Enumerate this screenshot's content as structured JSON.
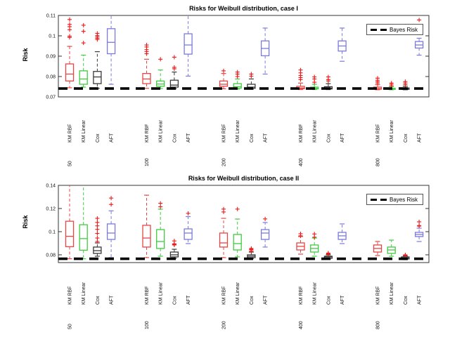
{
  "figure": {
    "background": "#ffffff"
  },
  "bayes_line_color": "#000000",
  "outlier_color": "#f01818",
  "method_colors": {
    "KM RBF": "#e84545",
    "KM Linear": "#3fcc3f",
    "Cox": "#3a3a3a",
    "AFT": "#7a7ae0"
  },
  "chart_data": [
    {
      "type": "boxplot",
      "title": "Risks for Weibull distribution, case I",
      "ylabel": "Risk",
      "legend_label": "Bayes Risk",
      "legend_position": "top-right",
      "ylim": [
        0.07,
        0.11
      ],
      "yticks": [
        0.07,
        0.08,
        0.09,
        0.1,
        0.11
      ],
      "ytick_labels": [
        "0.07",
        "0.08",
        "0.09",
        "0.1",
        "0.11"
      ],
      "bayes_risk": 0.0741,
      "groups": [
        "50",
        "100",
        "200",
        "400",
        "800"
      ],
      "methods": [
        "KM RBF",
        "KM Linear",
        "Cox",
        "AFT"
      ],
      "boxes": [
        {
          "g": "50",
          "m": "KM RBF",
          "wl": 0.0745,
          "q1": 0.0778,
          "md": 0.0812,
          "q3": 0.0862,
          "wh": 0.0948,
          "out": [
            0.0992,
            0.0998,
            0.103,
            0.1045,
            0.1056,
            0.108
          ]
        },
        {
          "g": "50",
          "m": "KM Linear",
          "wl": 0.0748,
          "q1": 0.0762,
          "md": 0.0788,
          "q3": 0.0828,
          "wh": 0.0905,
          "out": [
            0.0965,
            0.1022,
            0.1052
          ]
        },
        {
          "g": "50",
          "m": "Cox",
          "wl": 0.0742,
          "q1": 0.0765,
          "md": 0.0798,
          "q3": 0.0825,
          "wh": 0.0922,
          "out": [
            0.0982,
            0.0988,
            0.0995,
            0.1002,
            0.1012
          ]
        },
        {
          "g": "50",
          "m": "AFT",
          "wl": 0.0762,
          "q1": 0.0912,
          "md": 0.0968,
          "q3": 0.1035,
          "wh": 0.1098,
          "out": []
        },
        {
          "g": "100",
          "m": "KM RBF",
          "wl": 0.0742,
          "q1": 0.0765,
          "md": 0.0788,
          "q3": 0.0815,
          "wh": 0.0885,
          "out": [
            0.0912,
            0.0922,
            0.0932,
            0.0945,
            0.0955
          ]
        },
        {
          "g": "100",
          "m": "KM Linear",
          "wl": 0.0741,
          "q1": 0.0752,
          "md": 0.0763,
          "q3": 0.0778,
          "wh": 0.0832,
          "out": [
            0.0885
          ]
        },
        {
          "g": "100",
          "m": "Cox",
          "wl": 0.074,
          "q1": 0.0748,
          "md": 0.0758,
          "q3": 0.0782,
          "wh": 0.0822,
          "out": [
            0.0838,
            0.0845,
            0.0895
          ]
        },
        {
          "g": "100",
          "m": "AFT",
          "wl": 0.0802,
          "q1": 0.091,
          "md": 0.0955,
          "q3": 0.101,
          "wh": 0.1135,
          "out": []
        },
        {
          "g": "200",
          "m": "KM RBF",
          "wl": 0.074,
          "q1": 0.0752,
          "md": 0.0762,
          "q3": 0.0778,
          "wh": 0.0815,
          "out": [
            0.0828
          ]
        },
        {
          "g": "200",
          "m": "KM Linear",
          "wl": 0.0738,
          "q1": 0.0743,
          "md": 0.075,
          "q3": 0.0765,
          "wh": 0.0788,
          "out": [
            0.08,
            0.0812,
            0.0822
          ]
        },
        {
          "g": "200",
          "m": "Cox",
          "wl": 0.0738,
          "q1": 0.0742,
          "md": 0.0748,
          "q3": 0.0762,
          "wh": 0.0788,
          "out": [
            0.0802,
            0.0812
          ]
        },
        {
          "g": "200",
          "m": "AFT",
          "wl": 0.0812,
          "q1": 0.0902,
          "md": 0.0938,
          "q3": 0.0975,
          "wh": 0.1038,
          "out": []
        },
        {
          "g": "400",
          "m": "KM RBF",
          "wl": 0.0736,
          "q1": 0.074,
          "md": 0.0744,
          "q3": 0.0752,
          "wh": 0.0768,
          "out": [
            0.0785,
            0.0795,
            0.0805,
            0.0818,
            0.0832
          ]
        },
        {
          "g": "400",
          "m": "KM Linear",
          "wl": 0.0736,
          "q1": 0.0739,
          "md": 0.0742,
          "q3": 0.0748,
          "wh": 0.0762,
          "out": [
            0.0772,
            0.0788,
            0.0798
          ]
        },
        {
          "g": "400",
          "m": "Cox",
          "wl": 0.0736,
          "q1": 0.0739,
          "md": 0.0743,
          "q3": 0.075,
          "wh": 0.0765,
          "out": [
            0.0778,
            0.0785,
            0.0798
          ]
        },
        {
          "g": "400",
          "m": "AFT",
          "wl": 0.0875,
          "q1": 0.0925,
          "md": 0.095,
          "q3": 0.0975,
          "wh": 0.1038,
          "out": []
        },
        {
          "g": "800",
          "m": "KM RBF",
          "wl": 0.0735,
          "q1": 0.0738,
          "md": 0.0741,
          "q3": 0.0748,
          "wh": 0.076,
          "out": [
            0.0768,
            0.0775,
            0.0782,
            0.0792
          ]
        },
        {
          "g": "800",
          "m": "KM Linear",
          "wl": 0.0735,
          "q1": 0.0737,
          "md": 0.0739,
          "q3": 0.0742,
          "wh": 0.075,
          "out": [
            0.0755,
            0.0762,
            0.0768
          ]
        },
        {
          "g": "800",
          "m": "Cox",
          "wl": 0.0735,
          "q1": 0.0737,
          "md": 0.074,
          "q3": 0.0744,
          "wh": 0.0752,
          "out": [
            0.076,
            0.0768,
            0.0775
          ]
        },
        {
          "g": "800",
          "m": "AFT",
          "wl": 0.0905,
          "q1": 0.094,
          "md": 0.0955,
          "q3": 0.0972,
          "wh": 0.0988,
          "out": [
            0.1078
          ]
        }
      ]
    },
    {
      "type": "boxplot",
      "title": "Risks for Weibull distribution, case II",
      "ylabel": "Risk",
      "legend_label": "Bayes Risk",
      "legend_position": "top-right",
      "ylim": [
        0.0733,
        0.14
      ],
      "yticks": [
        0.08,
        0.1,
        0.12,
        0.14
      ],
      "ytick_labels": [
        "0.08",
        "0.1",
        "0.12",
        "0.14"
      ],
      "bayes_risk": 0.0766,
      "groups": [
        "50",
        "100",
        "200",
        "400",
        "800"
      ],
      "methods": [
        "KM RBF",
        "KM Linear",
        "Cox",
        "AFT"
      ],
      "boxes": [
        {
          "g": "50",
          "m": "KM RBF",
          "wl": 0.0766,
          "q1": 0.087,
          "md": 0.096,
          "q3": 0.109,
          "wh": 0.142,
          "out": []
        },
        {
          "g": "50",
          "m": "KM Linear",
          "wl": 0.0766,
          "q1": 0.084,
          "md": 0.094,
          "q3": 0.106,
          "wh": 0.142,
          "out": []
        },
        {
          "g": "50",
          "m": "Cox",
          "wl": 0.0788,
          "q1": 0.0812,
          "md": 0.0836,
          "q3": 0.0867,
          "wh": 0.0903,
          "out": [
            0.0915,
            0.0945,
            0.0985,
            0.102,
            0.105,
            0.108,
            0.1115
          ]
        },
        {
          "g": "50",
          "m": "AFT",
          "wl": 0.0776,
          "q1": 0.0933,
          "md": 0.0988,
          "q3": 0.1067,
          "wh": 0.118,
          "out": [
            0.1235,
            0.129
          ]
        },
        {
          "g": "100",
          "m": "KM RBF",
          "wl": 0.0776,
          "q1": 0.0867,
          "md": 0.0945,
          "q3": 0.1055,
          "wh": 0.1315,
          "out": []
        },
        {
          "g": "100",
          "m": "KM Linear",
          "wl": 0.0788,
          "q1": 0.0855,
          "md": 0.0915,
          "q3": 0.1018,
          "wh": 0.1194,
          "out": [
            0.1215,
            0.1245
          ]
        },
        {
          "g": "100",
          "m": "Cox",
          "wl": 0.077,
          "q1": 0.0782,
          "md": 0.08,
          "q3": 0.0824,
          "wh": 0.0848,
          "out": [
            0.0885,
            0.089,
            0.0895,
            0.092
          ]
        },
        {
          "g": "100",
          "m": "AFT",
          "wl": 0.0897,
          "q1": 0.0933,
          "md": 0.0988,
          "q3": 0.1024,
          "wh": 0.113,
          "out": [
            0.1158
          ]
        },
        {
          "g": "200",
          "m": "KM RBF",
          "wl": 0.0776,
          "q1": 0.0867,
          "md": 0.0903,
          "q3": 0.0988,
          "wh": 0.1115,
          "out": [
            0.117,
            0.1195
          ]
        },
        {
          "g": "200",
          "m": "KM Linear",
          "wl": 0.0782,
          "q1": 0.0842,
          "md": 0.0897,
          "q3": 0.0976,
          "wh": 0.1109,
          "out": [
            0.1195
          ]
        },
        {
          "g": "200",
          "m": "Cox",
          "wl": 0.0768,
          "q1": 0.0776,
          "md": 0.0788,
          "q3": 0.08,
          "wh": 0.0824,
          "out": [
            0.083,
            0.0842,
            0.0848,
            0.0855
          ]
        },
        {
          "g": "200",
          "m": "AFT",
          "wl": 0.0867,
          "q1": 0.0933,
          "md": 0.0988,
          "q3": 0.1018,
          "wh": 0.1079,
          "out": [
            0.111
          ]
        },
        {
          "g": "400",
          "m": "KM RBF",
          "wl": 0.0806,
          "q1": 0.0842,
          "md": 0.0873,
          "q3": 0.0903,
          "wh": 0.0958,
          "out": [
            0.0964,
            0.0982
          ]
        },
        {
          "g": "400",
          "m": "KM Linear",
          "wl": 0.0788,
          "q1": 0.0824,
          "md": 0.0855,
          "q3": 0.0885,
          "wh": 0.0945,
          "out": [
            0.0952,
            0.098
          ]
        },
        {
          "g": "400",
          "m": "Cox",
          "wl": 0.0762,
          "q1": 0.077,
          "md": 0.0782,
          "q3": 0.0788,
          "wh": 0.08,
          "out": [
            0.0806,
            0.081,
            0.0815
          ]
        },
        {
          "g": "400",
          "m": "AFT",
          "wl": 0.0897,
          "q1": 0.0933,
          "md": 0.0964,
          "q3": 0.0994,
          "wh": 0.1067,
          "out": []
        },
        {
          "g": "800",
          "m": "KM RBF",
          "wl": 0.0794,
          "q1": 0.0824,
          "md": 0.0855,
          "q3": 0.0885,
          "wh": 0.0915,
          "out": []
        },
        {
          "g": "800",
          "m": "KM Linear",
          "wl": 0.0788,
          "q1": 0.0812,
          "md": 0.0842,
          "q3": 0.0867,
          "wh": 0.0927,
          "out": []
        },
        {
          "g": "800",
          "m": "Cox",
          "wl": 0.0758,
          "q1": 0.0764,
          "md": 0.0773,
          "q3": 0.0782,
          "wh": 0.079,
          "out": [
            0.0794,
            0.08
          ]
        },
        {
          "g": "800",
          "m": "AFT",
          "wl": 0.0915,
          "q1": 0.0958,
          "md": 0.0976,
          "q3": 0.0994,
          "wh": 0.103,
          "out": [
            0.1048,
            0.1052,
            0.1085
          ]
        }
      ]
    }
  ]
}
